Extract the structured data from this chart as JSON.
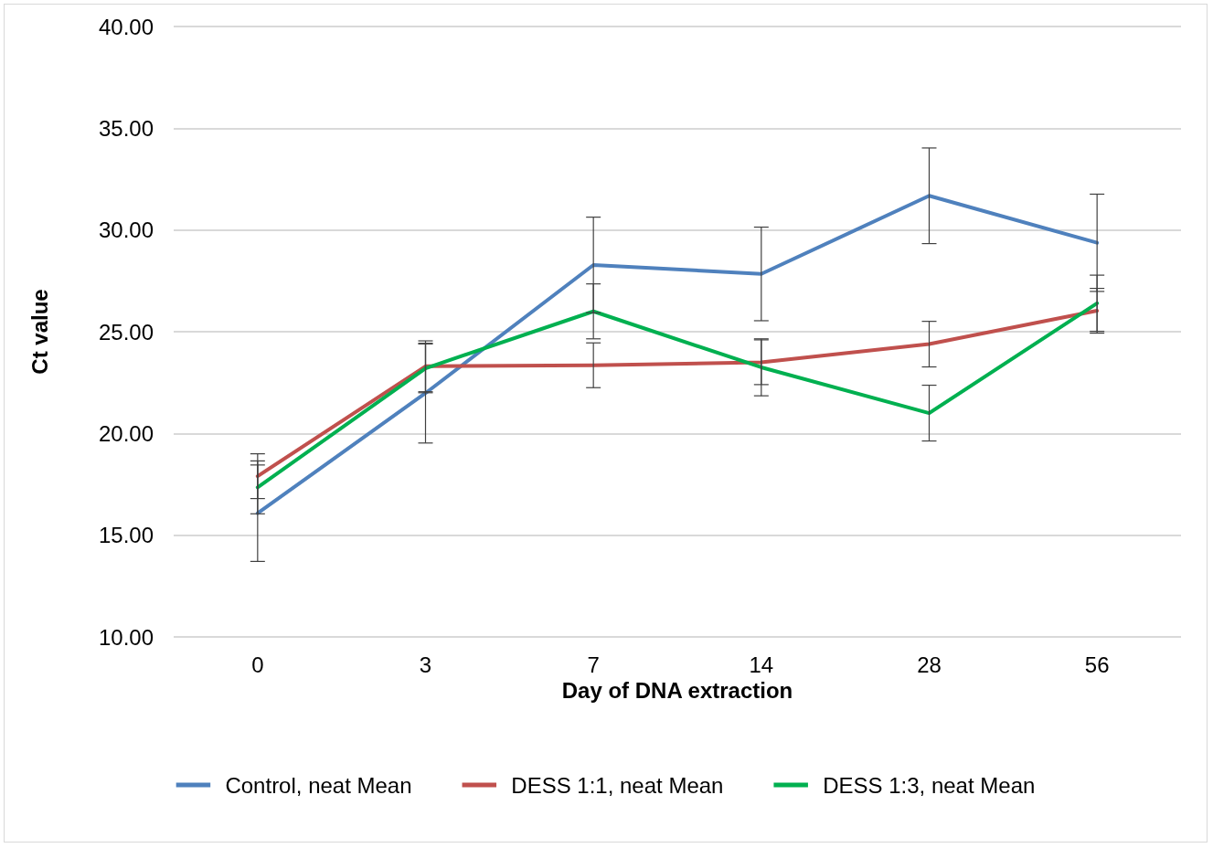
{
  "chart_data": {
    "type": "line",
    "xlabel": "Day of DNA extraction",
    "ylabel": "Ct value",
    "categories": [
      "0",
      "3",
      "7",
      "14",
      "28",
      "56"
    ],
    "series": [
      {
        "name": "Control, neat Mean",
        "color": "#4f81bd",
        "values": [
          16.08,
          21.98,
          28.28,
          27.84,
          31.68,
          29.37
        ],
        "errors": [
          2.37,
          2.45,
          2.35,
          2.3,
          2.35,
          2.39
        ]
      },
      {
        "name": "DESS 1:1, neat Mean",
        "color": "#c0504d",
        "values": [
          17.9,
          23.3,
          23.35,
          23.5,
          24.39,
          26.03
        ],
        "errors": [
          1.1,
          1.25,
          1.1,
          1.1,
          1.12,
          1.1
        ]
      },
      {
        "name": "DESS 1:3, neat Mean",
        "color": "#00b050",
        "values": [
          17.35,
          23.2,
          26.0,
          23.25,
          21.0,
          26.4
        ],
        "errors": [
          1.3,
          1.2,
          1.35,
          1.4,
          1.37,
          1.38
        ]
      }
    ],
    "ylim": [
      10,
      40
    ],
    "yticks": [
      {
        "value": 10,
        "label": "10.00"
      },
      {
        "value": 15,
        "label": "15.00"
      },
      {
        "value": 20,
        "label": "20.00"
      },
      {
        "value": 25,
        "label": "25.00"
      },
      {
        "value": 30,
        "label": "30.00"
      },
      {
        "value": 35,
        "label": "35.00"
      },
      {
        "value": 40,
        "label": "40.00"
      }
    ],
    "grid": "y",
    "legend": "bottom",
    "marker": "none",
    "line_style": "solid"
  }
}
